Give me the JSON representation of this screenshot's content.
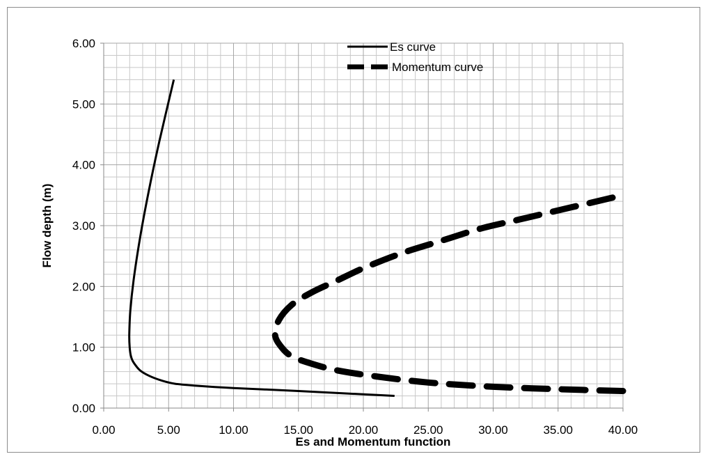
{
  "chart_data": {
    "type": "line",
    "title": "",
    "xlabel": "Es and Momentum function",
    "ylabel": "Flow depth (m)",
    "xlim": [
      0,
      40
    ],
    "ylim": [
      0,
      6
    ],
    "x_ticks": [
      "0.00",
      "5.00",
      "10.00",
      "15.00",
      "20.00",
      "25.00",
      "30.00",
      "35.00",
      "40.00"
    ],
    "y_ticks": [
      "0.00",
      "1.00",
      "2.00",
      "3.00",
      "4.00",
      "5.00",
      "6.00"
    ],
    "grid": true,
    "legend_position": "top-center",
    "series": [
      {
        "name": "Es curve",
        "style": "solid",
        "color": "#000000",
        "points": [
          [
            22.4,
            0.2
          ],
          [
            15.0,
            0.28
          ],
          [
            10.0,
            0.33
          ],
          [
            7.0,
            0.37
          ],
          [
            5.5,
            0.4
          ],
          [
            4.5,
            0.45
          ],
          [
            3.5,
            0.53
          ],
          [
            2.8,
            0.62
          ],
          [
            2.3,
            0.75
          ],
          [
            2.1,
            0.85
          ],
          [
            2.0,
            1.0
          ],
          [
            1.97,
            1.2
          ],
          [
            2.05,
            1.6
          ],
          [
            2.3,
            2.1
          ],
          [
            2.8,
            2.8
          ],
          [
            3.5,
            3.6
          ],
          [
            4.3,
            4.4
          ],
          [
            5.4,
            5.4
          ]
        ]
      },
      {
        "name": "Momentum curve",
        "style": "dashed",
        "color": "#000000",
        "points": [
          [
            40.0,
            0.28
          ],
          [
            35.0,
            0.31
          ],
          [
            30.0,
            0.35
          ],
          [
            25.0,
            0.42
          ],
          [
            21.0,
            0.52
          ],
          [
            18.0,
            0.62
          ],
          [
            16.0,
            0.73
          ],
          [
            14.5,
            0.85
          ],
          [
            13.7,
            1.0
          ],
          [
            13.2,
            1.2
          ],
          [
            13.5,
            1.45
          ],
          [
            14.5,
            1.7
          ],
          [
            16.0,
            1.9
          ],
          [
            18.0,
            2.1
          ],
          [
            20.0,
            2.3
          ],
          [
            23.0,
            2.55
          ],
          [
            26.0,
            2.75
          ],
          [
            29.0,
            2.95
          ],
          [
            32.0,
            3.1
          ],
          [
            36.0,
            3.3
          ],
          [
            40.0,
            3.5
          ]
        ]
      }
    ]
  }
}
